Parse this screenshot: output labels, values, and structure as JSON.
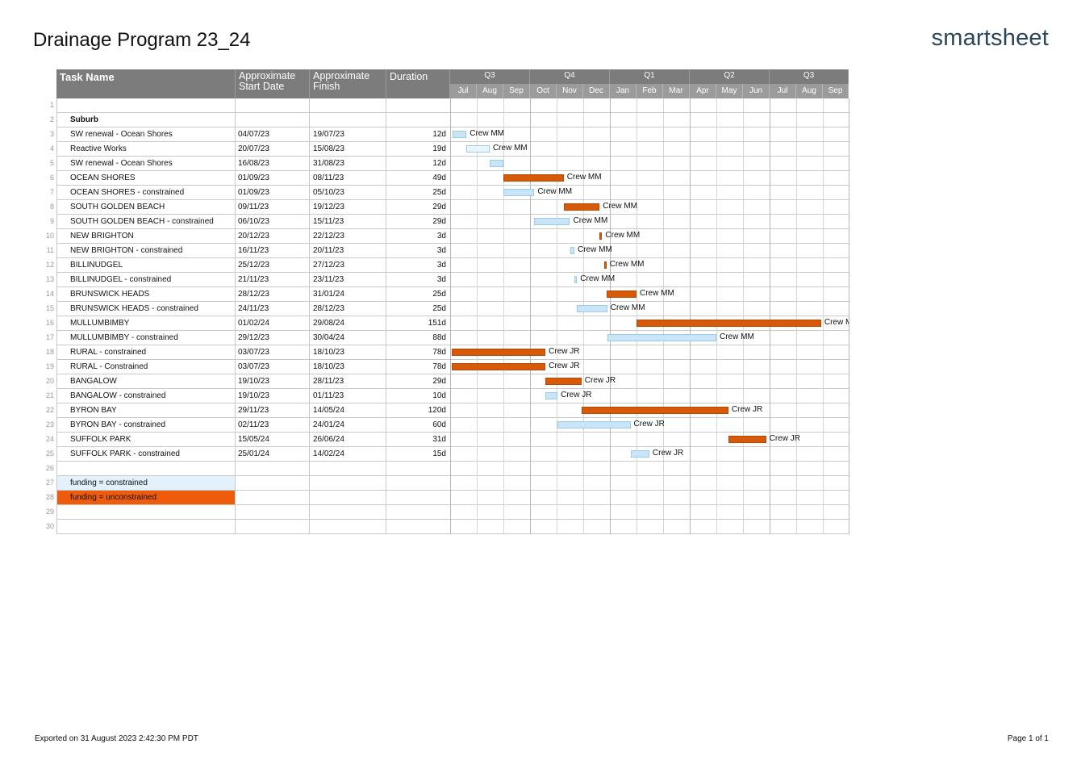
{
  "report": {
    "title": "Drainage Program 23_24",
    "brand": "smartsheet",
    "exported": "Exported on 31 August 2023 2:42:30 PM PDT",
    "page": "Page 1 of 1"
  },
  "columns": {
    "task": "Task Name",
    "start": "Approximate Start Date",
    "finish": "Approximate Finish",
    "duration": "Duration"
  },
  "timeline": {
    "quarters": [
      "Q3",
      "Q4",
      "Q1",
      "Q2",
      "Q3"
    ],
    "months": [
      "Jul",
      "Aug",
      "Sep",
      "Oct",
      "Nov",
      "Dec",
      "Jan",
      "Feb",
      "Mar",
      "Apr",
      "May",
      "Jun",
      "Jul",
      "Aug",
      "Sep"
    ],
    "month_starts": [
      "2023-07-01",
      "2023-08-01",
      "2023-09-01",
      "2023-10-01",
      "2023-11-01",
      "2023-12-01",
      "2024-01-01",
      "2024-02-01",
      "2024-03-01",
      "2024-04-01",
      "2024-05-01",
      "2024-06-01",
      "2024-07-01",
      "2024-08-01",
      "2024-09-01"
    ],
    "end": "2024-10-01"
  },
  "colors": {
    "unconstrained": "#d65a08",
    "constrained": "#c8e6f7",
    "header": "#7c7c7c",
    "legend_constrained": "#e2f1fb",
    "legend_unconstrained": "#ee5b0a"
  },
  "rows": [
    {
      "num": "1",
      "task": "",
      "start": "",
      "finish": "",
      "duration": ""
    },
    {
      "num": "2",
      "task": "Suburb",
      "start": "",
      "finish": "",
      "duration": "",
      "bold": true
    },
    {
      "num": "3",
      "task": "SW renewal - Ocean Shores",
      "start": "04/07/23",
      "finish": "19/07/23",
      "duration": "12d",
      "bar": {
        "from": "2023-07-04",
        "to": "2023-07-19",
        "kind": "constrained",
        "label": "Crew MM"
      }
    },
    {
      "num": "4",
      "task": "Reactive Works",
      "start": "20/07/23",
      "finish": "15/08/23",
      "duration": "19d",
      "bar": {
        "from": "2023-07-20",
        "to": "2023-08-15",
        "kind": "light",
        "label": "Crew MM"
      }
    },
    {
      "num": "5",
      "task": "SW renewal - Ocean Shores",
      "start": "16/08/23",
      "finish": "31/08/23",
      "duration": "12d",
      "bar": {
        "from": "2023-08-16",
        "to": "2023-08-31",
        "kind": "constrained",
        "label": ""
      }
    },
    {
      "num": "6",
      "task": "OCEAN SHORES",
      "start": "01/09/23",
      "finish": "08/11/23",
      "duration": "49d",
      "bar": {
        "from": "2023-09-01",
        "to": "2023-11-08",
        "kind": "unconstrained",
        "label": "Crew MM"
      }
    },
    {
      "num": "7",
      "task": "OCEAN SHORES - constrained",
      "start": "01/09/23",
      "finish": "05/10/23",
      "duration": "25d",
      "bar": {
        "from": "2023-09-01",
        "to": "2023-10-05",
        "kind": "constrained",
        "label": "Crew MM"
      }
    },
    {
      "num": "8",
      "task": "SOUTH GOLDEN BEACH",
      "start": "09/11/23",
      "finish": "19/12/23",
      "duration": "29d",
      "bar": {
        "from": "2023-11-09",
        "to": "2023-12-19",
        "kind": "unconstrained",
        "label": "Crew MM"
      }
    },
    {
      "num": "9",
      "task": "SOUTH GOLDEN BEACH - constrained",
      "start": "06/10/23",
      "finish": "15/11/23",
      "duration": "29d",
      "bar": {
        "from": "2023-10-06",
        "to": "2023-11-15",
        "kind": "constrained",
        "label": "Crew MM"
      }
    },
    {
      "num": "10",
      "task": "NEW BRIGHTON",
      "start": "20/12/23",
      "finish": "22/12/23",
      "duration": "3d",
      "bar": {
        "from": "2023-12-20",
        "to": "2023-12-22",
        "kind": "unconstrained",
        "label": "Crew MM"
      }
    },
    {
      "num": "11",
      "task": "NEW BRIGHTON - constrained",
      "start": "16/11/23",
      "finish": "20/11/23",
      "duration": "3d",
      "bar": {
        "from": "2023-11-16",
        "to": "2023-11-20",
        "kind": "constrained",
        "label": "Crew MM"
      }
    },
    {
      "num": "12",
      "task": "BILLINUDGEL",
      "start": "25/12/23",
      "finish": "27/12/23",
      "duration": "3d",
      "bar": {
        "from": "2023-12-25",
        "to": "2023-12-27",
        "kind": "unconstrained",
        "label": "Crew MM"
      }
    },
    {
      "num": "13",
      "task": "BILLINUDGEL - constrained",
      "start": "21/11/23",
      "finish": "23/11/23",
      "duration": "3d",
      "bar": {
        "from": "2023-11-21",
        "to": "2023-11-23",
        "kind": "constrained",
        "label": "Crew MM"
      }
    },
    {
      "num": "14",
      "task": "BRUNSWICK HEADS",
      "start": "28/12/23",
      "finish": "31/01/24",
      "duration": "25d",
      "bar": {
        "from": "2023-12-28",
        "to": "2024-01-31",
        "kind": "unconstrained",
        "label": "Crew MM"
      }
    },
    {
      "num": "15",
      "task": "BRUNSWICK HEADS - constrained",
      "start": "24/11/23",
      "finish": "28/12/23",
      "duration": "25d",
      "bar": {
        "from": "2023-11-24",
        "to": "2023-12-28",
        "kind": "constrained",
        "label": "Crew MM"
      }
    },
    {
      "num": "16",
      "task": "MULLUMBIMBY",
      "start": "01/02/24",
      "finish": "29/08/24",
      "duration": "151d",
      "bar": {
        "from": "2024-02-01",
        "to": "2024-08-29",
        "kind": "unconstrained",
        "label": "Crew MM"
      }
    },
    {
      "num": "17",
      "task": "MULLUMBIMBY - constrained",
      "start": "29/12/23",
      "finish": "30/04/24",
      "duration": "88d",
      "bar": {
        "from": "2023-12-29",
        "to": "2024-04-30",
        "kind": "constrained",
        "label": "Crew MM"
      }
    },
    {
      "num": "18",
      "task": "RURAL - constrained",
      "start": "03/07/23",
      "finish": "18/10/23",
      "duration": "78d",
      "bar": {
        "from": "2023-07-03",
        "to": "2023-10-18",
        "kind": "unconstrained",
        "label": "Crew JR"
      }
    },
    {
      "num": "19",
      "task": "RURAL - Constrained",
      "start": "03/07/23",
      "finish": "18/10/23",
      "duration": "78d",
      "bar": {
        "from": "2023-07-03",
        "to": "2023-10-18",
        "kind": "unconstrained",
        "label": "Crew JR"
      }
    },
    {
      "num": "20",
      "task": "BANGALOW",
      "start": "19/10/23",
      "finish": "28/11/23",
      "duration": "29d",
      "bar": {
        "from": "2023-10-19",
        "to": "2023-11-28",
        "kind": "unconstrained",
        "label": "Crew JR"
      }
    },
    {
      "num": "21",
      "task": "BANGALOW - constrained",
      "start": "19/10/23",
      "finish": "01/11/23",
      "duration": "10d",
      "bar": {
        "from": "2023-10-19",
        "to": "2023-11-01",
        "kind": "constrained",
        "label": "Crew JR"
      }
    },
    {
      "num": "22",
      "task": "BYRON BAY",
      "start": "29/11/23",
      "finish": "14/05/24",
      "duration": "120d",
      "bar": {
        "from": "2023-11-29",
        "to": "2024-05-14",
        "kind": "unconstrained",
        "label": "Crew JR"
      }
    },
    {
      "num": "23",
      "task": "BYRON BAY - constrained",
      "start": "02/11/23",
      "finish": "24/01/24",
      "duration": "60d",
      "bar": {
        "from": "2023-11-02",
        "to": "2024-01-24",
        "kind": "constrained",
        "label": "Crew JR"
      }
    },
    {
      "num": "24",
      "task": "SUFFOLK PARK",
      "start": "15/05/24",
      "finish": "26/06/24",
      "duration": "31d",
      "bar": {
        "from": "2024-05-15",
        "to": "2024-06-26",
        "kind": "unconstrained",
        "label": "Crew JR"
      }
    },
    {
      "num": "25",
      "task": "SUFFOLK PARK - constrained",
      "start": "25/01/24",
      "finish": "14/02/24",
      "duration": "15d",
      "bar": {
        "from": "2024-01-25",
        "to": "2024-02-14",
        "kind": "constrained",
        "label": "Crew JR"
      }
    },
    {
      "num": "26",
      "task": "",
      "start": "",
      "finish": "",
      "duration": ""
    },
    {
      "num": "27",
      "task": "funding = constrained",
      "start": "",
      "finish": "",
      "duration": "",
      "legend": "constrained"
    },
    {
      "num": "28",
      "task": "funding = unconstrained",
      "start": "",
      "finish": "",
      "duration": "",
      "legend": "unconstrained"
    },
    {
      "num": "29",
      "task": "",
      "start": "",
      "finish": "",
      "duration": ""
    },
    {
      "num": "30",
      "task": "",
      "start": "",
      "finish": "",
      "duration": ""
    }
  ]
}
